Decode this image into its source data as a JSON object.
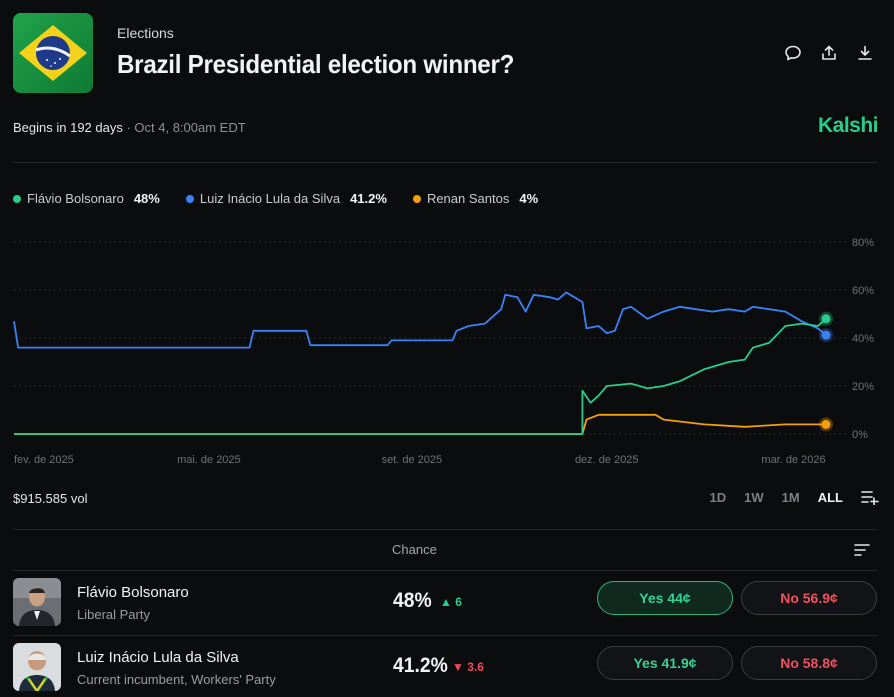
{
  "header": {
    "category": "Elections",
    "title": "Brazil Presidential election winner?"
  },
  "schedule": {
    "begins": "Begins in 192 days",
    "separator": " · ",
    "date": "Oct 4, 8:00am EDT"
  },
  "brand": "Kalshi",
  "legend": [
    {
      "name": "Flávio Bolsonaro",
      "pct": "48%",
      "color": "#28cc8b"
    },
    {
      "name": "Luiz Inácio Lula da Silva",
      "pct": "41.2%",
      "color": "#3b82f6"
    },
    {
      "name": "Renan Santos",
      "pct": "4%",
      "color": "#f59e0b"
    }
  ],
  "chart_data": {
    "type": "line",
    "x_ticks": [
      "fev. de 2025",
      "mai. de 2025",
      "set. de 2025",
      "dez. de 2025",
      "mar. de 2026"
    ],
    "x_tick_pos": [
      0.0,
      0.24,
      0.49,
      0.73,
      0.96
    ],
    "y_ticks": [
      "80%",
      "60%",
      "40%",
      "20%",
      "0%"
    ],
    "y_tick_vals": [
      80,
      60,
      40,
      20,
      0
    ],
    "ylim": [
      0,
      80
    ],
    "series": [
      {
        "name": "Luiz Inácio Lula da Silva",
        "color": "#3b82f6",
        "points": [
          [
            0.0,
            47
          ],
          [
            0.005,
            36
          ],
          [
            0.1,
            36
          ],
          [
            0.29,
            36
          ],
          [
            0.295,
            43
          ],
          [
            0.36,
            43
          ],
          [
            0.365,
            37
          ],
          [
            0.46,
            37
          ],
          [
            0.465,
            39
          ],
          [
            0.54,
            39
          ],
          [
            0.545,
            43
          ],
          [
            0.56,
            45
          ],
          [
            0.58,
            46
          ],
          [
            0.6,
            52
          ],
          [
            0.605,
            58
          ],
          [
            0.62,
            57
          ],
          [
            0.63,
            51
          ],
          [
            0.64,
            58
          ],
          [
            0.66,
            57
          ],
          [
            0.67,
            56
          ],
          [
            0.68,
            59
          ],
          [
            0.69,
            57
          ],
          [
            0.7,
            55
          ],
          [
            0.705,
            44
          ],
          [
            0.72,
            45
          ],
          [
            0.73,
            42
          ],
          [
            0.74,
            43
          ],
          [
            0.75,
            52
          ],
          [
            0.76,
            53
          ],
          [
            0.78,
            48
          ],
          [
            0.8,
            51
          ],
          [
            0.82,
            53
          ],
          [
            0.84,
            52
          ],
          [
            0.86,
            51
          ],
          [
            0.88,
            52
          ],
          [
            0.9,
            51
          ],
          [
            0.91,
            53
          ],
          [
            0.93,
            52
          ],
          [
            0.95,
            51
          ],
          [
            0.97,
            47
          ],
          [
            0.99,
            44
          ],
          [
            1.0,
            41.2
          ]
        ]
      },
      {
        "name": "Flávio Bolsonaro",
        "color": "#28cc8b",
        "points": [
          [
            0.0,
            0
          ],
          [
            0.7,
            0
          ],
          [
            0.7,
            18
          ],
          [
            0.71,
            13
          ],
          [
            0.72,
            16
          ],
          [
            0.73,
            20
          ],
          [
            0.76,
            21
          ],
          [
            0.78,
            19
          ],
          [
            0.8,
            20
          ],
          [
            0.82,
            22
          ],
          [
            0.85,
            27
          ],
          [
            0.88,
            30
          ],
          [
            0.9,
            31
          ],
          [
            0.91,
            36
          ],
          [
            0.93,
            38
          ],
          [
            0.95,
            45
          ],
          [
            0.97,
            46
          ],
          [
            0.99,
            45
          ],
          [
            1.0,
            48
          ]
        ]
      },
      {
        "name": "Renan Santos",
        "color": "#f59e0b",
        "points": [
          [
            0.0,
            0
          ],
          [
            0.7,
            0
          ],
          [
            0.705,
            6
          ],
          [
            0.72,
            8
          ],
          [
            0.79,
            8
          ],
          [
            0.8,
            6
          ],
          [
            0.85,
            4
          ],
          [
            0.9,
            3
          ],
          [
            0.95,
            4
          ],
          [
            1.0,
            4
          ]
        ]
      }
    ]
  },
  "volume": "$915.585 vol",
  "ranges": [
    "1D",
    "1W",
    "1M",
    "ALL"
  ],
  "active_range": "ALL",
  "table": {
    "chance_header": "Chance",
    "rows": [
      {
        "name": "Flávio Bolsonaro",
        "party": "Liberal Party",
        "chance": "48%",
        "change_arrow": "▲",
        "change": "6",
        "yes": "Yes 44¢",
        "no": "No 56.9¢"
      },
      {
        "name": "Luiz Inácio Lula da Silva",
        "party": "Current incumbent, Workers' Party",
        "chance": "41.2%",
        "change_arrow": "▼",
        "change": "3.6",
        "yes": "Yes 41.9¢",
        "no": "No 58.8¢"
      }
    ]
  }
}
